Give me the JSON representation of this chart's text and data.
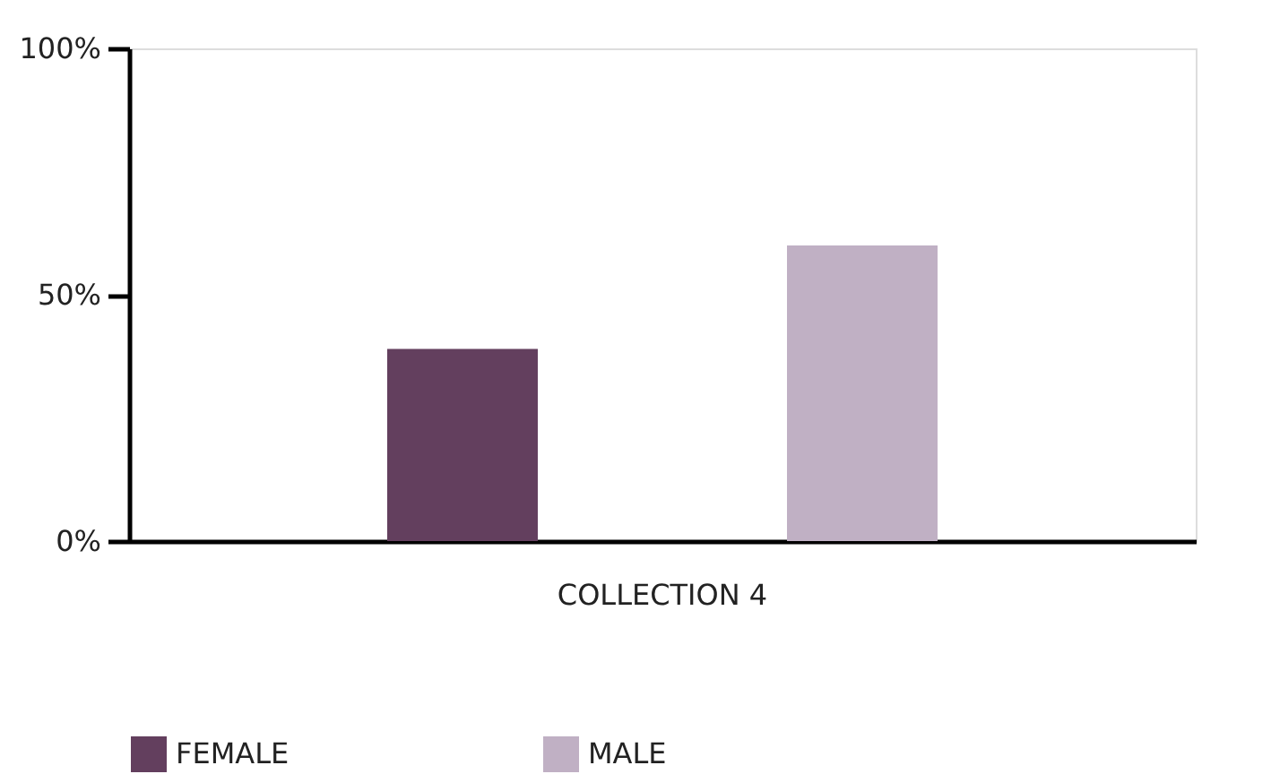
{
  "chart_data": {
    "type": "bar",
    "categories": [
      "COLLECTION 4"
    ],
    "series": [
      {
        "name": "FEMALE",
        "color": "#633f5e",
        "values": [
          39
        ]
      },
      {
        "name": "MALE",
        "color": "#c0b0c4",
        "values": [
          60
        ]
      }
    ],
    "ylim": [
      0,
      100
    ],
    "yticks": [
      {
        "value": 0,
        "label": "0%"
      },
      {
        "value": 50,
        "label": "50%"
      },
      {
        "value": 100,
        "label": "100%"
      }
    ],
    "grid": false,
    "legend": "bottom"
  }
}
